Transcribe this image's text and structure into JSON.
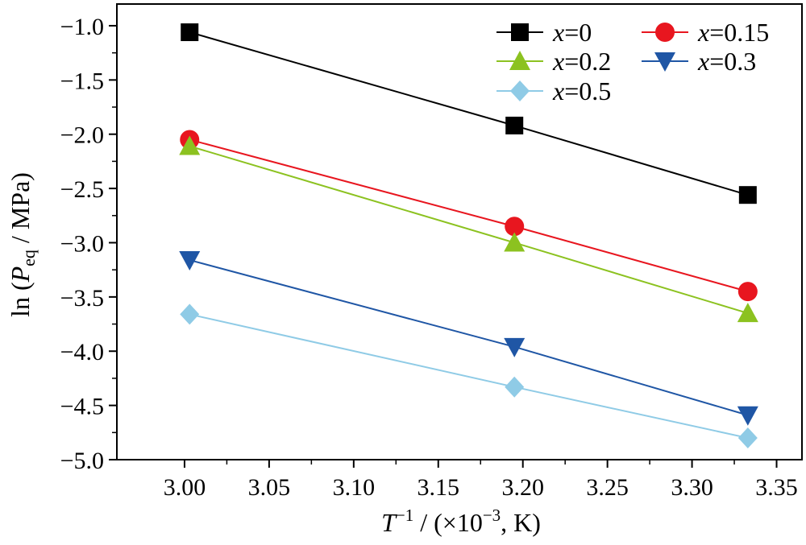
{
  "chart_data": {
    "type": "line",
    "xlabel": {
      "var": "T",
      "sup": "−1",
      "rest": " / (×10",
      "exp": "−3",
      "tail": ", K)"
    },
    "ylabel": {
      "pre": "ln (",
      "var": "P",
      "sub": "eq",
      "post": " / MPa)"
    },
    "xlim": [
      2.96,
      3.365
    ],
    "ylim": [
      -5.0,
      -0.8
    ],
    "xticks": [
      "3.00",
      "3.05",
      "3.10",
      "3.15",
      "3.20",
      "3.25",
      "3.30",
      "3.35"
    ],
    "yticks": [
      "−1.0",
      "−1.5",
      "−2.0",
      "−2.5",
      "−3.0",
      "−3.5",
      "−4.0",
      "−4.5",
      "−5.0"
    ],
    "x": [
      3.003,
      3.195,
      3.333
    ],
    "series": [
      {
        "var": "x",
        "eq": "=0",
        "marker": "square",
        "color": "#000000",
        "line_color": "#000000",
        "values": [
          -1.06,
          -1.92,
          -2.56
        ]
      },
      {
        "var": "x",
        "eq": "=0.15",
        "marker": "circle",
        "color": "#e8161f",
        "line_color": "#e8161f",
        "values": [
          -2.05,
          -2.85,
          -3.45
        ]
      },
      {
        "var": "x",
        "eq": "=0.2",
        "marker": "triangle-up",
        "color": "#8cc220",
        "line_color": "#8cc220",
        "values": [
          -2.11,
          -3.0,
          -3.65
        ]
      },
      {
        "var": "x",
        "eq": "=0.3",
        "marker": "triangle-down",
        "color": "#1f56a5",
        "line_color": "#1f56a5",
        "values": [
          -3.16,
          -3.96,
          -4.59
        ]
      },
      {
        "var": "x",
        "eq": "=0.5",
        "marker": "diamond",
        "color": "#8fcbe6",
        "line_color": "#8fcbe6",
        "values": [
          -3.66,
          -4.33,
          -4.8
        ]
      }
    ],
    "legend": {
      "placement": "top-right",
      "columns": 2
    },
    "grid": false
  }
}
